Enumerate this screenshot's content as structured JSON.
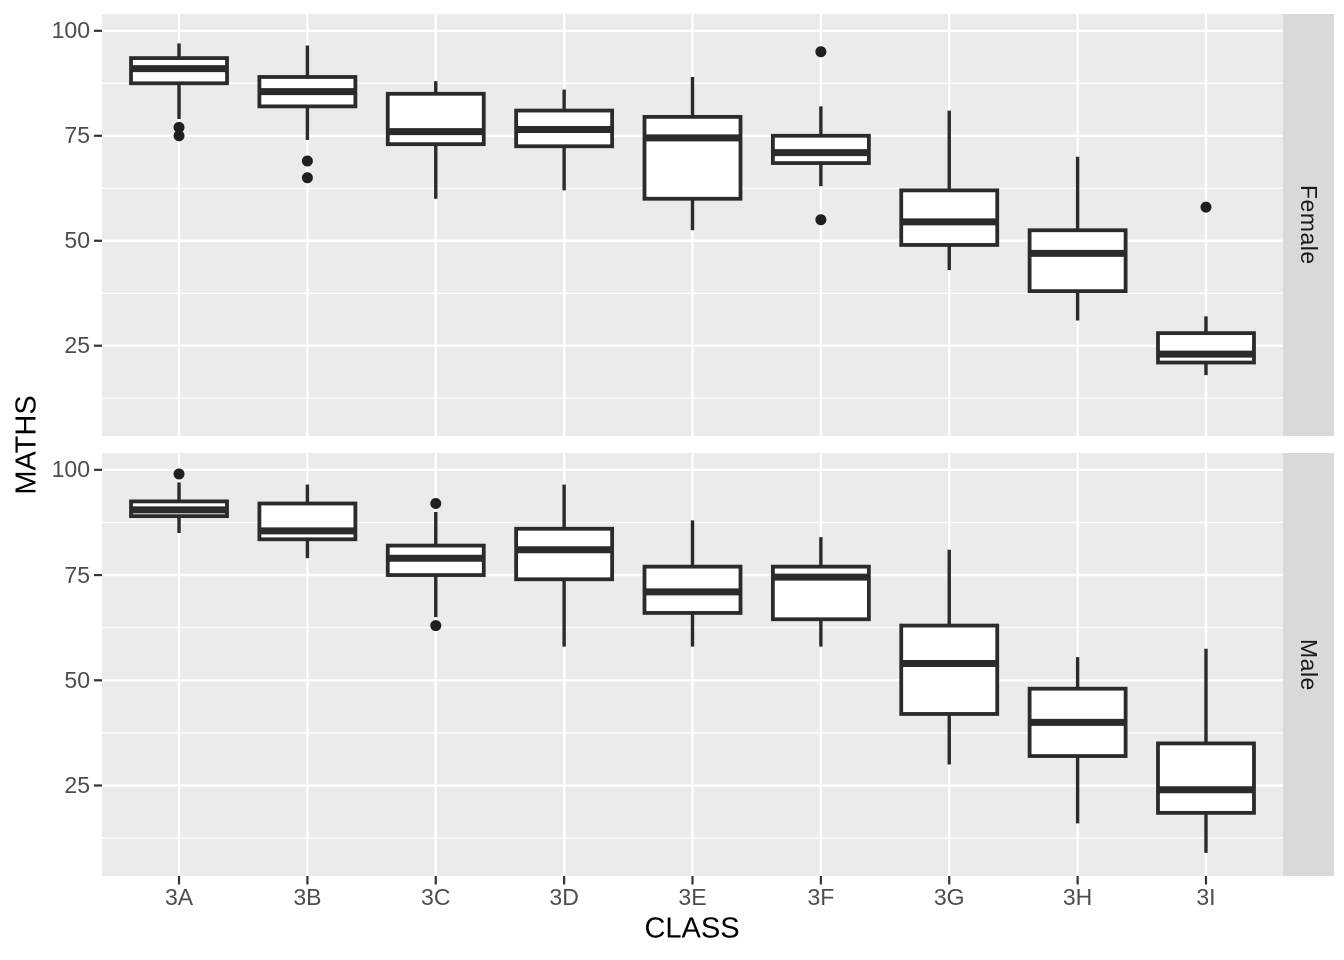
{
  "colors": {
    "background": "#FFFFFF",
    "panel": "#EBEBEB",
    "grid": "#FFFFFF",
    "strip_bg": "#D9D9D9",
    "strip_text": "#1A1A1A",
    "box_stroke": "#2B2B2B",
    "box_fill": "#FFFFFF",
    "outlier": "#1F1F1F",
    "tick_label": "#4D4D4D",
    "tick_mark": "#333333",
    "axis_title": "#000000"
  },
  "chart_data": {
    "type": "boxplot",
    "title": "",
    "xlabel": "CLASS",
    "ylabel": "MATHS",
    "facet_labels": [
      "Female",
      "Male"
    ],
    "categories": [
      "3A",
      "3B",
      "3C",
      "3D",
      "3E",
      "3F",
      "3G",
      "3H",
      "3I"
    ],
    "y_ticks": [
      100,
      75,
      50,
      25
    ],
    "y_minor_ticks": [
      87.5,
      62.5,
      37.5,
      12.5
    ],
    "ylim": [
      3.5,
      104
    ],
    "grid": "on",
    "legend": "none",
    "series": [
      {
        "facet": "Female",
        "boxes": [
          {
            "class": "3A",
            "low": 79,
            "q1": 87.5,
            "median": 91,
            "q3": 93.5,
            "high": 97,
            "outliers": [
              77,
              75
            ]
          },
          {
            "class": "3B",
            "low": 74,
            "q1": 82,
            "median": 85.5,
            "q3": 89,
            "high": 96.5,
            "outliers": [
              69,
              65
            ]
          },
          {
            "class": "3C",
            "low": 60,
            "q1": 73,
            "median": 76,
            "q3": 85,
            "high": 88,
            "outliers": []
          },
          {
            "class": "3D",
            "low": 62,
            "q1": 72.5,
            "median": 76.5,
            "q3": 81,
            "high": 86,
            "outliers": []
          },
          {
            "class": "3E",
            "low": 52.5,
            "q1": 60,
            "median": 74.5,
            "q3": 79.5,
            "high": 89,
            "outliers": []
          },
          {
            "class": "3F",
            "low": 63,
            "q1": 68.5,
            "median": 71,
            "q3": 75,
            "high": 82,
            "outliers": [
              95,
              55
            ]
          },
          {
            "class": "3G",
            "low": 43,
            "q1": 49,
            "median": 54.5,
            "q3": 62,
            "high": 81,
            "outliers": []
          },
          {
            "class": "3H",
            "low": 31,
            "q1": 38,
            "median": 47,
            "q3": 52.5,
            "high": 70,
            "outliers": []
          },
          {
            "class": "3I",
            "low": 18,
            "q1": 21,
            "median": 23,
            "q3": 28,
            "high": 32,
            "outliers": [
              58
            ]
          }
        ]
      },
      {
        "facet": "Male",
        "boxes": [
          {
            "class": "3A",
            "low": 85,
            "q1": 89,
            "median": 90.5,
            "q3": 92.5,
            "high": 97,
            "outliers": [
              99
            ]
          },
          {
            "class": "3B",
            "low": 79,
            "q1": 83.5,
            "median": 85.5,
            "q3": 92,
            "high": 96.5,
            "outliers": []
          },
          {
            "class": "3C",
            "low": 65,
            "q1": 75,
            "median": 79,
            "q3": 82,
            "high": 90,
            "outliers": [
              92,
              63
            ]
          },
          {
            "class": "3D",
            "low": 58,
            "q1": 74,
            "median": 81,
            "q3": 86,
            "high": 96.5,
            "outliers": []
          },
          {
            "class": "3E",
            "low": 58,
            "q1": 66,
            "median": 71,
            "q3": 77,
            "high": 88,
            "outliers": []
          },
          {
            "class": "3F",
            "low": 58,
            "q1": 64.5,
            "median": 74.5,
            "q3": 77,
            "high": 84,
            "outliers": []
          },
          {
            "class": "3G",
            "low": 30,
            "q1": 42,
            "median": 54,
            "q3": 63,
            "high": 81,
            "outliers": []
          },
          {
            "class": "3H",
            "low": 16,
            "q1": 32,
            "median": 40,
            "q3": 48,
            "high": 55.5,
            "outliers": []
          },
          {
            "class": "3I",
            "low": 9,
            "q1": 18.5,
            "median": 24,
            "q3": 35,
            "high": 57.5,
            "outliers": []
          }
        ]
      }
    ]
  }
}
